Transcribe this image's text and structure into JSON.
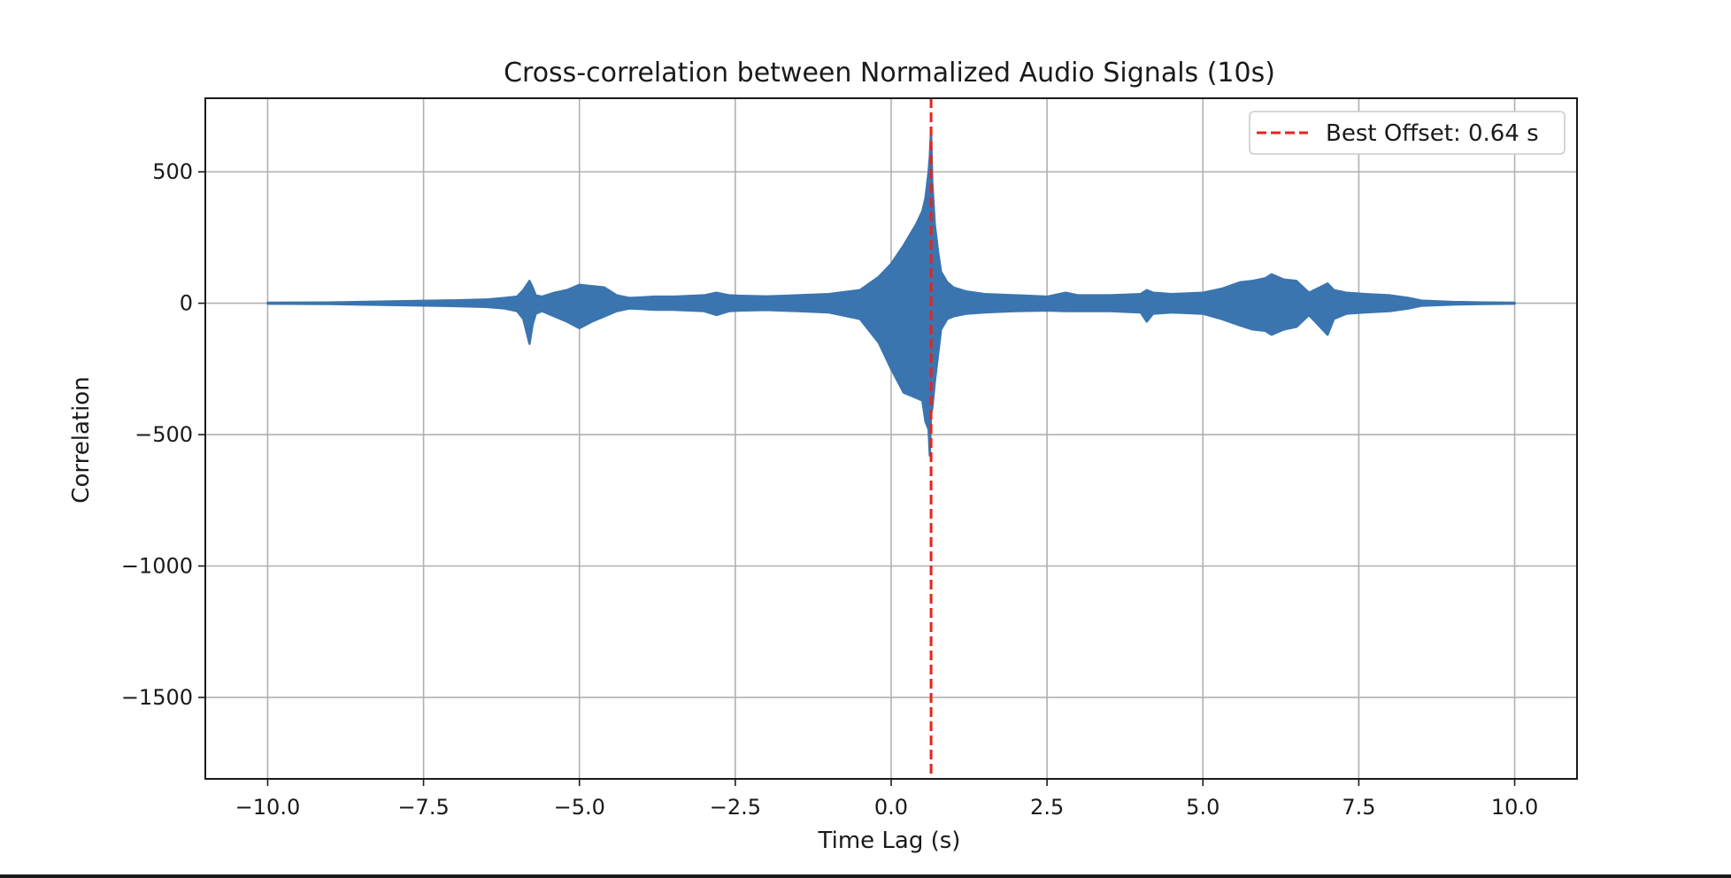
{
  "chart_data": {
    "type": "line",
    "title": "Cross-correlation between Normalized Audio Signals (10s)",
    "xlabel": "Time Lag (s)",
    "ylabel": "Correlation",
    "xlim": [
      -11,
      11
    ],
    "ylim": [
      -1810,
      780
    ],
    "x_ticks": [
      -10.0,
      -7.5,
      -5.0,
      -2.5,
      0.0,
      2.5,
      5.0,
      7.5,
      10.0
    ],
    "x_tick_labels": [
      "−10.0",
      "−7.5",
      "−5.0",
      "−2.5",
      "0.0",
      "2.5",
      "5.0",
      "7.5",
      "10.0"
    ],
    "y_ticks": [
      500,
      0,
      -500,
      -1000,
      -1500
    ],
    "y_tick_labels": [
      "500",
      "0",
      "−500",
      "−1000",
      "−1500"
    ],
    "grid": true,
    "legend_position": "top-right",
    "series": [
      {
        "kind": "envelope",
        "color": "#3a75b0",
        "x": [
          -10.0,
          -9.0,
          -8.5,
          -8.0,
          -7.5,
          -7.0,
          -6.5,
          -6.2,
          -6.0,
          -5.9,
          -5.8,
          -5.75,
          -5.7,
          -5.6,
          -5.4,
          -5.2,
          -5.0,
          -4.8,
          -4.6,
          -4.4,
          -4.2,
          -4.0,
          -3.8,
          -3.5,
          -3.2,
          -3.0,
          -2.8,
          -2.6,
          -2.4,
          -2.0,
          -1.5,
          -1.0,
          -0.5,
          -0.2,
          0.0,
          0.2,
          0.4,
          0.5,
          0.55,
          0.6,
          0.62,
          0.64,
          0.66,
          0.7,
          0.75,
          0.8,
          0.9,
          1.0,
          1.2,
          1.5,
          2.0,
          2.5,
          2.8,
          3.0,
          3.5,
          4.0,
          4.1,
          4.2,
          4.5,
          5.0,
          5.3,
          5.6,
          5.8,
          6.0,
          6.1,
          6.3,
          6.5,
          6.7,
          7.0,
          7.1,
          7.3,
          7.6,
          8.0,
          8.3,
          8.5,
          9.0,
          9.5,
          10.0
        ],
        "upper": [
          2,
          3,
          5,
          7,
          9,
          11,
          14,
          20,
          25,
          50,
          85,
          60,
          30,
          25,
          40,
          50,
          70,
          65,
          60,
          30,
          20,
          22,
          25,
          25,
          28,
          30,
          40,
          30,
          28,
          26,
          30,
          35,
          50,
          100,
          150,
          220,
          300,
          350,
          400,
          500,
          560,
          660,
          460,
          300,
          200,
          120,
          80,
          60,
          45,
          35,
          30,
          25,
          40,
          30,
          30,
          35,
          50,
          40,
          35,
          40,
          55,
          80,
          85,
          95,
          110,
          90,
          85,
          40,
          75,
          50,
          40,
          35,
          30,
          20,
          10,
          5,
          3,
          2
        ],
        "lower": [
          -2,
          -3,
          -5,
          -7,
          -9,
          -11,
          -14,
          -20,
          -30,
          -60,
          -155,
          -80,
          -40,
          -30,
          -50,
          -70,
          -95,
          -70,
          -50,
          -30,
          -20,
          -22,
          -25,
          -25,
          -28,
          -30,
          -45,
          -30,
          -28,
          -26,
          -30,
          -35,
          -60,
          -150,
          -250,
          -340,
          -360,
          -370,
          -450,
          -480,
          -580,
          -420,
          -400,
          -300,
          -200,
          -100,
          -60,
          -50,
          -40,
          -35,
          -30,
          -28,
          -30,
          -30,
          -30,
          -35,
          -70,
          -40,
          -35,
          -40,
          -60,
          -85,
          -100,
          -105,
          -120,
          -100,
          -90,
          -45,
          -120,
          -60,
          -40,
          -35,
          -30,
          -20,
          -10,
          -5,
          -3,
          -2
        ]
      }
    ],
    "annotations": [
      {
        "type": "vline",
        "x": 0.64,
        "color": "#e8231c",
        "style": "dashed",
        "label": "Best Offset: 0.64 s"
      }
    ]
  }
}
